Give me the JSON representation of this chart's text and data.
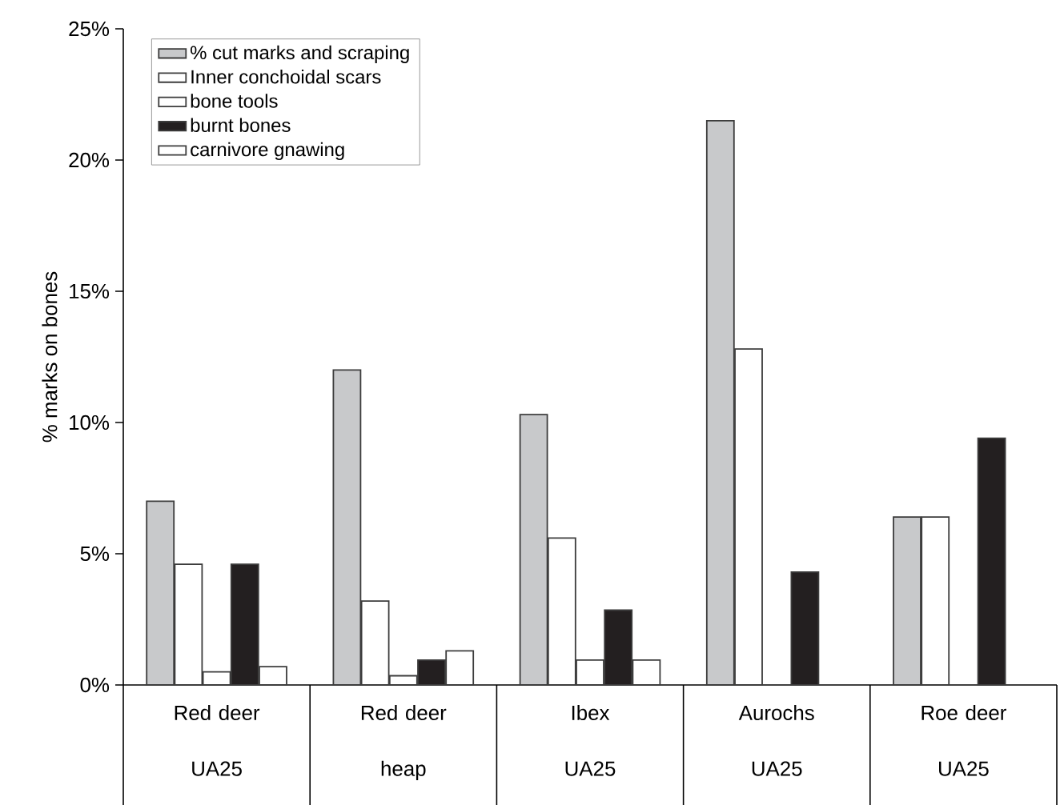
{
  "chart_data": {
    "type": "bar",
    "ylabel": "% marks on bones",
    "categories": [
      "Red deer UA25",
      "Red deer heap",
      "Ibex UA25",
      "Aurochs UA25",
      "Roe deer UA25"
    ],
    "series": [
      {
        "name": "% cut marks and scraping",
        "color": "#c8c9cb",
        "values": [
          7.0,
          12.0,
          10.3,
          21.5,
          6.4
        ]
      },
      {
        "name": "Inner conchoidal scars",
        "color": "#ffffff",
        "values": [
          4.6,
          3.2,
          5.6,
          12.8,
          6.4
        ]
      },
      {
        "name": "bone tools",
        "color": "#ffffff",
        "values": [
          0.5,
          0.35,
          0.95,
          null,
          null
        ]
      },
      {
        "name": "burnt bones",
        "color": "#231f20",
        "values": [
          4.6,
          0.95,
          2.85,
          4.3,
          9.4
        ]
      },
      {
        "name": "carnivore gnawing",
        "color": "#ffffff",
        "values": [
          0.7,
          1.3,
          0.95,
          null,
          null
        ]
      }
    ],
    "ylim": [
      0,
      25
    ],
    "yticks": [
      {
        "value": 0,
        "label": "0%"
      },
      {
        "value": 5,
        "label": "5%"
      },
      {
        "value": 10,
        "label": "10%"
      },
      {
        "value": 15,
        "label": "15%"
      },
      {
        "value": 20,
        "label": "20%"
      },
      {
        "value": 25,
        "label": "25%"
      }
    ],
    "grid": false,
    "legend": "top left"
  }
}
